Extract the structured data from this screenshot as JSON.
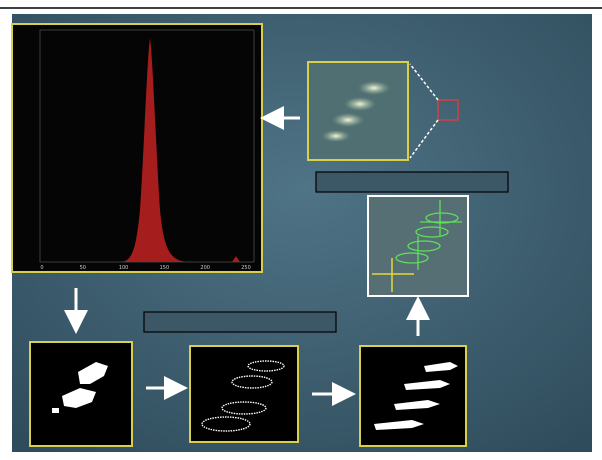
{
  "histogram": {
    "xtick_labels": [
      "0",
      "50",
      "100",
      "150",
      "200",
      "250"
    ]
  }
}
